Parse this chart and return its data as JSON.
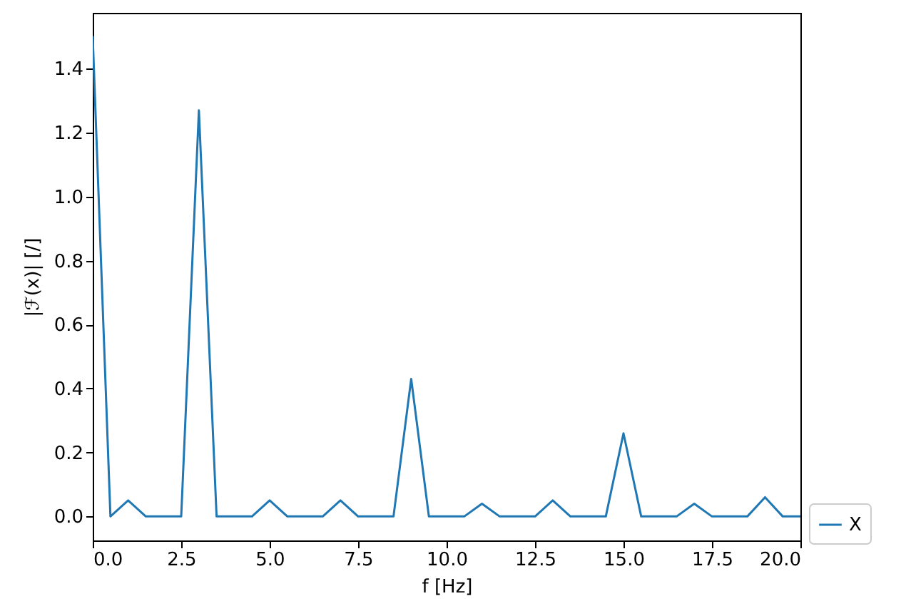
{
  "chart_data": {
    "type": "line",
    "xlabel": "f [Hz]",
    "ylabel": "|ℱ(x)| [/]",
    "x": [
      0,
      0.5,
      1,
      1.5,
      2,
      2.5,
      3,
      3.5,
      4,
      4.5,
      5,
      5.5,
      6,
      6.5,
      7,
      7.5,
      8,
      8.5,
      9,
      9.5,
      10,
      10.5,
      11,
      11.5,
      12,
      12.5,
      13,
      13.5,
      14,
      14.5,
      15,
      15.5,
      16,
      16.5,
      17,
      17.5,
      18,
      18.5,
      19,
      19.5,
      20
    ],
    "series": [
      {
        "name": "X",
        "color": "#1f77b4",
        "values": [
          1.5,
          0,
          0.05,
          0,
          0,
          0,
          1.27,
          0,
          0,
          0,
          0.05,
          0,
          0,
          0,
          0.05,
          0,
          0,
          0,
          0.43,
          0,
          0,
          0,
          0.04,
          0,
          0,
          0,
          0.05,
          0,
          0,
          0,
          0.26,
          0,
          0,
          0,
          0.04,
          0,
          0,
          0,
          0.06,
          0,
          0
        ]
      }
    ],
    "xlim": [
      0,
      20
    ],
    "ylim": [
      -0.075,
      1.575
    ],
    "xticks": [
      {
        "value": 0,
        "label": "0.0"
      },
      2.5,
      {
        "value": 5,
        "label": "5.0"
      },
      7.5,
      {
        "value": 10,
        "label": "10.0"
      },
      12.5,
      {
        "value": 15,
        "label": "15.0"
      },
      17.5,
      {
        "value": 20,
        "label": "20.0"
      }
    ],
    "yticks": [
      {
        "value": 0,
        "label": "0.0"
      },
      0.2,
      0.4,
      0.6,
      0.8,
      {
        "value": 1,
        "label": "1.0"
      },
      1.2,
      1.4
    ],
    "grid": false,
    "legend": "bottom right"
  }
}
